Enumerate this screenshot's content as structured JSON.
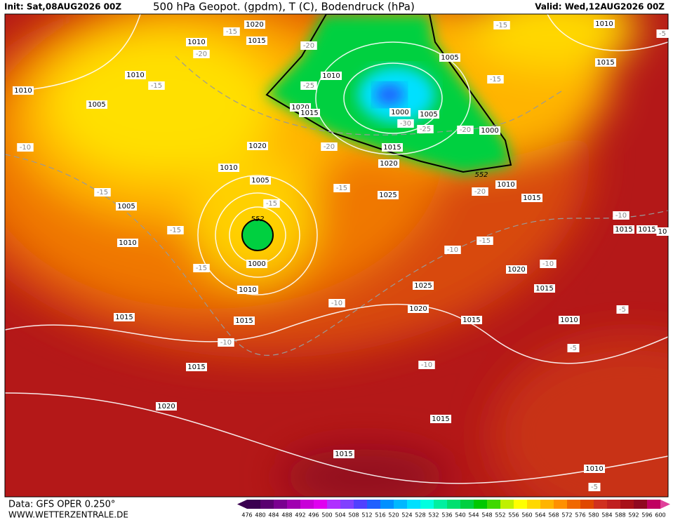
{
  "header": {
    "init": "Init: Sat,08AUG2026 00Z",
    "title": "500 hPa Geopot. (gpdm), T (C), Bodendruck (hPa)",
    "valid": "Valid: Wed,12AUG2026 00Z"
  },
  "map_labels": [
    "1020",
    "1015",
    "1010",
    "-20",
    "-15",
    "1010",
    "-15",
    "1010",
    "1005",
    "-10",
    "-15",
    "1005",
    "-15",
    "1010",
    "-15",
    "1015",
    "-10",
    "1015",
    "1020",
    "1015",
    "1010",
    "1000",
    "552",
    "1005",
    "-15",
    "1010",
    "1020",
    "-20",
    "1010",
    "-25",
    "1020",
    "1015",
    "-20",
    "1015",
    "1020",
    "1025",
    "-15",
    "1000",
    "1005",
    "-30",
    "-25",
    "-20",
    "1000",
    "552",
    "1010",
    "-20",
    "1015",
    "1005",
    "-15",
    "-15",
    "1010",
    "1015",
    "-10",
    "1015",
    "1015",
    "10",
    "-10",
    "-15",
    "1020",
    "-10",
    "1015",
    "1025",
    "-10",
    "1020",
    "1015",
    "-5",
    "1010",
    "-5",
    "-10",
    "1015",
    "1015",
    "1010",
    "-5",
    "-5"
  ],
  "colorbar": {
    "labels": [
      476,
      480,
      484,
      488,
      492,
      496,
      500,
      504,
      508,
      512,
      516,
      520,
      524,
      528,
      532,
      536,
      540,
      544,
      548,
      552,
      556,
      560,
      564,
      568,
      572,
      576,
      580,
      584,
      588,
      592,
      596,
      600
    ],
    "colors": [
      "#3a0050",
      "#5a0070",
      "#7a0090",
      "#a000b0",
      "#c800d8",
      "#e000f0",
      "#b030ff",
      "#8040ff",
      "#5040ff",
      "#2060ff",
      "#0090ff",
      "#00b8ff",
      "#00e0ff",
      "#00ffe0",
      "#00f0a0",
      "#00e070",
      "#00d040",
      "#00c800",
      "#40d800",
      "#c0f000",
      "#ffff00",
      "#ffd800",
      "#ffb400",
      "#ff9000",
      "#f06800",
      "#e04800",
      "#d03020",
      "#c02020",
      "#a81018",
      "#900820",
      "#c00060"
    ]
  },
  "footer": {
    "data": "Data: GFS OPER 0.250°",
    "site": "WWW.WETTERZENTRALE.DE"
  }
}
